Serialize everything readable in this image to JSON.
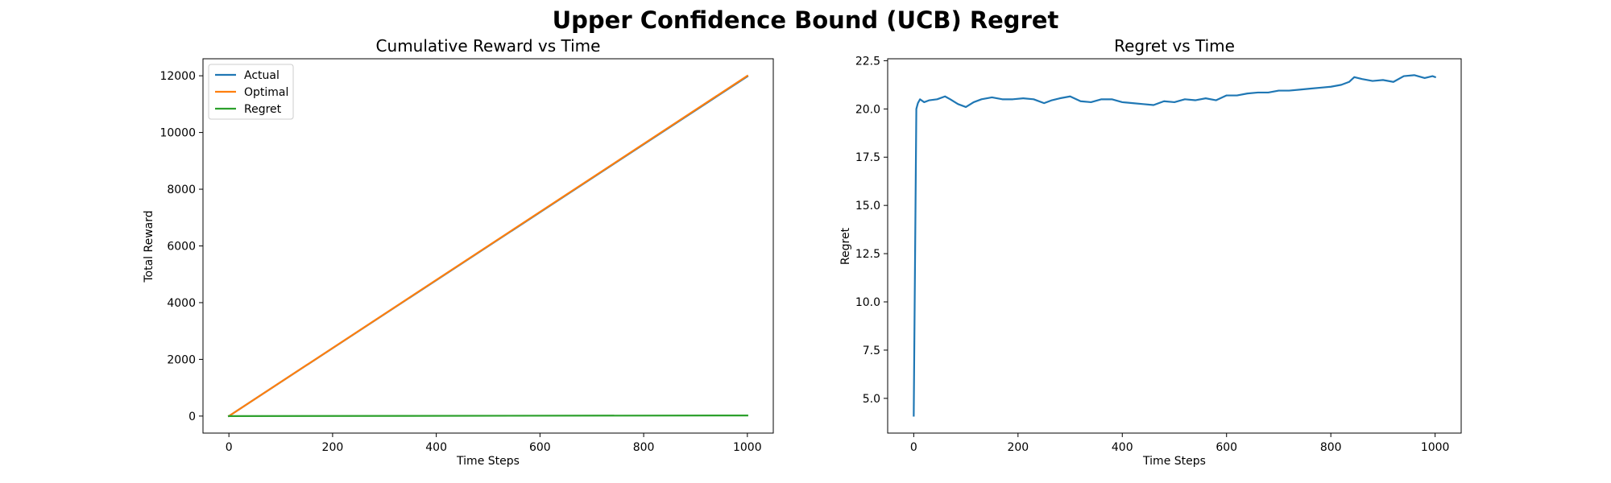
{
  "figure_title": "Upper Confidence Bound (UCB) Regret",
  "colors": {
    "blue": "#1f77b4",
    "orange": "#ff7f0e",
    "green": "#2ca02c"
  },
  "chart_data": [
    {
      "type": "line",
      "title": "Cumulative Reward vs Time",
      "xlabel": "Time Steps",
      "ylabel": "Total Reward",
      "xlim": [
        -50,
        1050
      ],
      "ylim": [
        -600,
        12600
      ],
      "xticks": [
        0,
        200,
        400,
        600,
        800,
        1000
      ],
      "yticks": [
        0,
        2000,
        4000,
        6000,
        8000,
        10000,
        12000
      ],
      "grid": false,
      "legend": "upper left",
      "series": [
        {
          "name": "Actual",
          "color": "#1f77b4",
          "x": [
            0,
            1000
          ],
          "y": [
            0,
            11978
          ]
        },
        {
          "name": "Optimal",
          "color": "#ff7f0e",
          "x": [
            0,
            1000
          ],
          "y": [
            0,
            12000
          ]
        },
        {
          "name": "Regret",
          "color": "#2ca02c",
          "x": [
            0,
            1000
          ],
          "y": [
            0,
            22
          ]
        }
      ]
    },
    {
      "type": "line",
      "title": "Regret vs Time",
      "xlabel": "Time Steps",
      "ylabel": "Regret",
      "xlim": [
        -50,
        1050
      ],
      "ylim": [
        3.2,
        22.6
      ],
      "xticks": [
        0,
        200,
        400,
        600,
        800,
        1000
      ],
      "yticks": [
        5.0,
        7.5,
        10.0,
        12.5,
        15.0,
        17.5,
        20.0,
        22.5
      ],
      "grid": false,
      "series": [
        {
          "color": "#1f77b4",
          "x": [
            0,
            5,
            8,
            12,
            20,
            30,
            45,
            60,
            70,
            85,
            100,
            115,
            130,
            150,
            170,
            190,
            210,
            230,
            250,
            265,
            280,
            300,
            320,
            340,
            360,
            380,
            400,
            420,
            440,
            460,
            480,
            500,
            520,
            540,
            560,
            580,
            600,
            620,
            640,
            660,
            680,
            700,
            720,
            740,
            760,
            780,
            800,
            820,
            835,
            845,
            860,
            880,
            900,
            920,
            940,
            960,
            980,
            995,
            1000
          ],
          "y": [
            4.1,
            20.0,
            20.3,
            20.5,
            20.35,
            20.45,
            20.5,
            20.65,
            20.5,
            20.25,
            20.1,
            20.35,
            20.5,
            20.6,
            20.5,
            20.5,
            20.55,
            20.5,
            20.3,
            20.45,
            20.55,
            20.65,
            20.4,
            20.35,
            20.5,
            20.5,
            20.35,
            20.3,
            20.25,
            20.2,
            20.4,
            20.35,
            20.5,
            20.45,
            20.55,
            20.45,
            20.7,
            20.7,
            20.8,
            20.85,
            20.85,
            20.95,
            20.95,
            21.0,
            21.05,
            21.1,
            21.15,
            21.25,
            21.4,
            21.65,
            21.55,
            21.45,
            21.5,
            21.4,
            21.7,
            21.75,
            21.6,
            21.7,
            21.65
          ]
        }
      ]
    }
  ]
}
